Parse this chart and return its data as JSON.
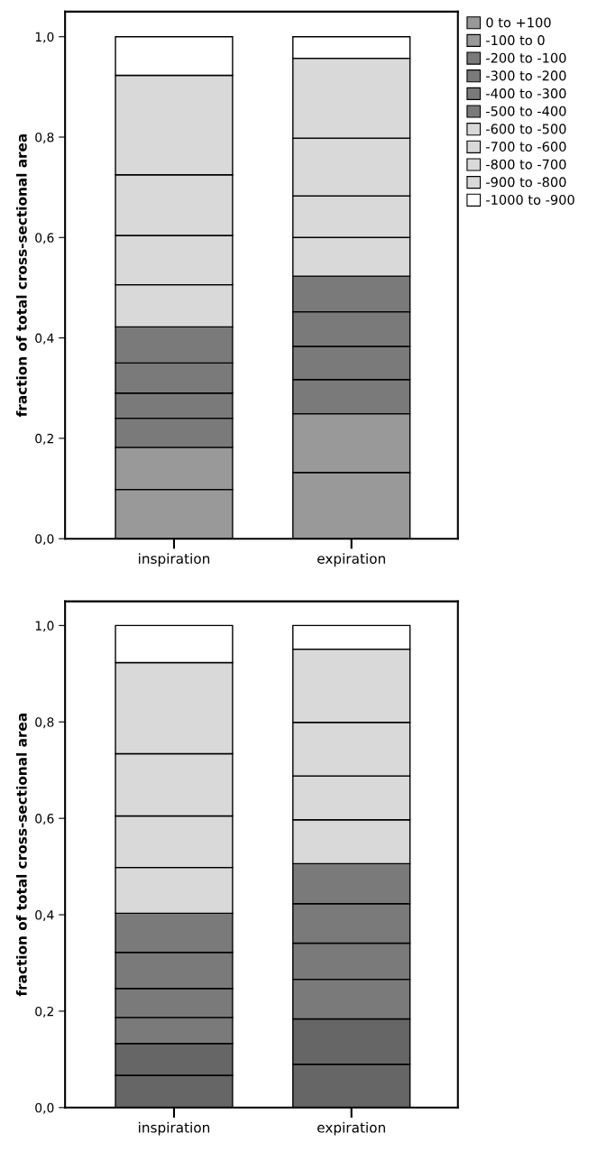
{
  "chart_data": [
    {
      "type": "bar",
      "stacked": true,
      "ylabel": "fraction of total cross-sectional area",
      "categories": [
        "inspiration",
        "expiration"
      ],
      "ylim": [
        0,
        1.05
      ],
      "yticks": [
        {
          "value": 0,
          "label": "0,0"
        },
        {
          "value": 0.2,
          "label": "0,2"
        },
        {
          "value": 0.4,
          "label": "0,4"
        },
        {
          "value": 0.6,
          "label": "0,6"
        },
        {
          "value": 0.8,
          "label": "0,8"
        },
        {
          "value": 1.0,
          "label": "1,0"
        }
      ],
      "grid": false,
      "legend": "top right",
      "series": [
        {
          "name": "0 to +100",
          "color": "#999999",
          "values": [
            0.098,
            0.132
          ]
        },
        {
          "name": "-100 to 0",
          "color": "#999999",
          "values": [
            0.084,
            0.117
          ]
        },
        {
          "name": "-200 to -100",
          "color": "#7a7a7a",
          "values": [
            0.058,
            0.068
          ]
        },
        {
          "name": "-300 to -200",
          "color": "#7a7a7a",
          "values": [
            0.05,
            0.066
          ]
        },
        {
          "name": "-400 to -300",
          "color": "#7a7a7a",
          "values": [
            0.06,
            0.069
          ]
        },
        {
          "name": "-500 to -400",
          "color": "#7a7a7a",
          "values": [
            0.072,
            0.071
          ]
        },
        {
          "name": "-600 to -500",
          "color": "#d9d9d9",
          "values": [
            0.084,
            0.077
          ]
        },
        {
          "name": "-700 to -600",
          "color": "#d9d9d9",
          "values": [
            0.098,
            0.083
          ]
        },
        {
          "name": "-800 to -700",
          "color": "#d9d9d9",
          "values": [
            0.121,
            0.115
          ]
        },
        {
          "name": "-900 to -800",
          "color": "#d9d9d9",
          "values": [
            0.198,
            0.159
          ]
        },
        {
          "name": "-1000 to -900",
          "color": "#ffffff",
          "values": [
            0.077,
            0.043
          ]
        }
      ]
    },
    {
      "type": "bar",
      "stacked": true,
      "ylabel": "fraction of total cross-sectional area",
      "categories": [
        "inspiration",
        "expiration"
      ],
      "ylim": [
        0,
        1.05
      ],
      "yticks": [
        {
          "value": 0,
          "label": "0,0"
        },
        {
          "value": 0.2,
          "label": "0,2"
        },
        {
          "value": 0.4,
          "label": "0,4"
        },
        {
          "value": 0.6,
          "label": "0,6"
        },
        {
          "value": 0.8,
          "label": "0,8"
        },
        {
          "value": 1.0,
          "label": "1,0"
        }
      ],
      "grid": false,
      "series": [
        {
          "color": "#666666",
          "values": [
            0.067,
            0.09
          ]
        },
        {
          "color": "#666666",
          "values": [
            0.066,
            0.094
          ]
        },
        {
          "color": "#7a7a7a",
          "values": [
            0.054,
            0.082
          ]
        },
        {
          "color": "#7a7a7a",
          "values": [
            0.06,
            0.075
          ]
        },
        {
          "color": "#7a7a7a",
          "values": [
            0.075,
            0.082
          ]
        },
        {
          "color": "#7a7a7a",
          "values": [
            0.081,
            0.083
          ]
        },
        {
          "color": "#d9d9d9",
          "values": [
            0.095,
            0.091
          ]
        },
        {
          "color": "#d9d9d9",
          "values": [
            0.107,
            0.091
          ]
        },
        {
          "color": "#d9d9d9",
          "values": [
            0.129,
            0.111
          ]
        },
        {
          "color": "#d9d9d9",
          "values": [
            0.189,
            0.152
          ]
        },
        {
          "color": "#ffffff",
          "values": [
            0.077,
            0.049
          ]
        }
      ]
    }
  ]
}
